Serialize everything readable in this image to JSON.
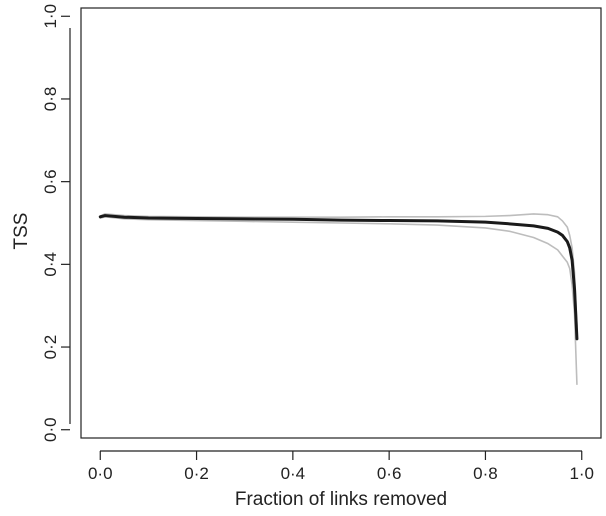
{
  "chart_data": {
    "type": "line",
    "title": "",
    "xlabel": "Fraction of links removed",
    "ylabel": "TSS",
    "xlim": [
      -0.04,
      1.04
    ],
    "ylim": [
      -0.02,
      1.02
    ],
    "x_ticks": [
      0.0,
      0.2,
      0.4,
      0.6,
      0.8,
      1.0
    ],
    "x_tick_labels": [
      "0·0",
      "0·2",
      "0·4",
      "0·6",
      "0·8",
      "1·0"
    ],
    "y_ticks": [
      0.0,
      0.2,
      0.4,
      0.6,
      0.8,
      1.0
    ],
    "y_tick_labels": [
      "0·0",
      "0·2",
      "0·4",
      "0·6",
      "0·8",
      "1·0"
    ],
    "grid": false,
    "legend": "none",
    "series": [
      {
        "role": "upper-bound",
        "color": "#bdbdbd",
        "x": [
          0.0,
          0.01,
          0.05,
          0.1,
          0.2,
          0.3,
          0.4,
          0.5,
          0.6,
          0.7,
          0.8,
          0.85,
          0.9,
          0.93,
          0.95,
          0.96,
          0.97,
          0.975,
          0.98,
          0.985,
          0.99
        ],
        "y": [
          0.517,
          0.522,
          0.518,
          0.516,
          0.515,
          0.514,
          0.514,
          0.514,
          0.515,
          0.515,
          0.516,
          0.518,
          0.522,
          0.52,
          0.515,
          0.505,
          0.49,
          0.47,
          0.44,
          0.38,
          0.25
        ]
      },
      {
        "role": "lower-bound",
        "color": "#bdbdbd",
        "x": [
          0.0,
          0.01,
          0.05,
          0.1,
          0.2,
          0.3,
          0.4,
          0.5,
          0.6,
          0.7,
          0.8,
          0.85,
          0.9,
          0.93,
          0.95,
          0.96,
          0.97,
          0.975,
          0.98,
          0.985,
          0.99
        ],
        "y": [
          0.512,
          0.515,
          0.51,
          0.508,
          0.506,
          0.504,
          0.502,
          0.5,
          0.498,
          0.495,
          0.488,
          0.48,
          0.465,
          0.45,
          0.435,
          0.42,
          0.405,
          0.39,
          0.35,
          0.28,
          0.11
        ]
      },
      {
        "role": "mean",
        "color": "#1a1a1a",
        "x": [
          0.0,
          0.01,
          0.05,
          0.1,
          0.2,
          0.3,
          0.4,
          0.5,
          0.6,
          0.7,
          0.8,
          0.85,
          0.9,
          0.93,
          0.95,
          0.96,
          0.97,
          0.975,
          0.98,
          0.985,
          0.99
        ],
        "y": [
          0.515,
          0.518,
          0.514,
          0.512,
          0.511,
          0.51,
          0.509,
          0.507,
          0.506,
          0.505,
          0.502,
          0.498,
          0.493,
          0.487,
          0.478,
          0.47,
          0.455,
          0.44,
          0.41,
          0.34,
          0.22
        ]
      }
    ]
  }
}
